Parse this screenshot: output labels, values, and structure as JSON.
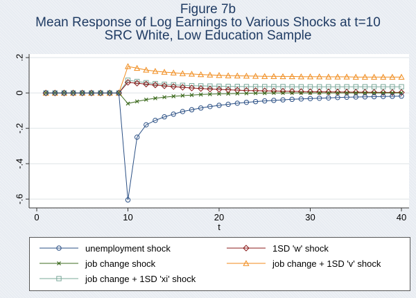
{
  "chart_data": {
    "type": "line",
    "title": "Figure 7b",
    "subtitle": [
      "Mean Response of Log Earnings to Various Shocks at t=10",
      "SRC White, Low Education Sample"
    ],
    "xlabel": "t",
    "ylabel": "",
    "xlim": [
      0,
      40
    ],
    "ylim": [
      -0.65,
      0.22
    ],
    "xticks": [
      0,
      10,
      20,
      30,
      40
    ],
    "xtick_labels": [
      "0",
      "10",
      "20",
      "30",
      "40"
    ],
    "yticks": [
      0.2,
      0,
      -0.2,
      -0.4,
      -0.6
    ],
    "ytick_labels": [
      ".2",
      "0",
      "-.2",
      "-.4",
      "-.6"
    ],
    "grid": true,
    "x": [
      1,
      2,
      3,
      4,
      5,
      6,
      7,
      8,
      9,
      10,
      11,
      12,
      13,
      14,
      15,
      16,
      17,
      18,
      19,
      20,
      21,
      22,
      23,
      24,
      25,
      26,
      27,
      28,
      29,
      30,
      31,
      32,
      33,
      34,
      35,
      36,
      37,
      38,
      39,
      40
    ],
    "series": [
      {
        "name": "unemployment shock",
        "color": "#2a4f84",
        "marker": "circle",
        "values": [
          0,
          0,
          0,
          0,
          0,
          0,
          0,
          0,
          0,
          -0.605,
          -0.25,
          -0.18,
          -0.155,
          -0.135,
          -0.12,
          -0.105,
          -0.095,
          -0.085,
          -0.077,
          -0.07,
          -0.064,
          -0.058,
          -0.053,
          -0.049,
          -0.045,
          -0.042,
          -0.039,
          -0.036,
          -0.034,
          -0.032,
          -0.03,
          -0.028,
          -0.026,
          -0.024,
          -0.023,
          -0.022,
          -0.021,
          -0.02,
          -0.019,
          -0.018
        ]
      },
      {
        "name": "1SD 'w' shock",
        "color": "#8b1a1a",
        "marker": "diamond",
        "values": [
          0,
          0,
          0,
          0,
          0,
          0,
          0,
          0,
          0,
          0.06,
          0.055,
          0.05,
          0.045,
          0.04,
          0.036,
          0.032,
          0.028,
          0.025,
          0.022,
          0.02,
          0.018,
          0.016,
          0.014,
          0.013,
          0.012,
          0.011,
          0.01,
          0.009,
          0.008,
          0.007,
          0.0065,
          0.006,
          0.0055,
          0.005,
          0.0045,
          0.004,
          0.0035,
          0.003,
          0.003,
          0.003
        ]
      },
      {
        "name": "job change shock",
        "color": "#3d6b1f",
        "marker": "x",
        "values": [
          0,
          0,
          0,
          0,
          0,
          0,
          0,
          0,
          0,
          -0.06,
          -0.048,
          -0.038,
          -0.03,
          -0.024,
          -0.019,
          -0.015,
          -0.012,
          -0.009,
          -0.007,
          -0.005,
          -0.004,
          -0.003,
          -0.002,
          -0.001,
          -0.001,
          0,
          0,
          0,
          0,
          0,
          0,
          0,
          0,
          0,
          0,
          0,
          0,
          0,
          0,
          0
        ]
      },
      {
        "name": "job change + 1SD 'v' shock",
        "color": "#f08a1a",
        "marker": "triangle",
        "values": [
          0,
          0,
          0,
          0,
          0,
          0,
          0,
          0,
          0,
          0.15,
          0.14,
          0.13,
          0.123,
          0.118,
          0.114,
          0.11,
          0.107,
          0.104,
          0.102,
          0.1,
          0.098,
          0.097,
          0.096,
          0.095,
          0.094,
          0.094,
          0.093,
          0.093,
          0.092,
          0.092,
          0.092,
          0.091,
          0.091,
          0.091,
          0.09,
          0.09,
          0.09,
          0.09,
          0.09,
          0.09
        ]
      },
      {
        "name": "job change + 1SD 'xi' shock",
        "color": "#7aa89a",
        "marker": "square",
        "values": [
          0,
          0,
          0,
          0,
          0,
          0,
          0,
          0,
          0,
          0.072,
          0.065,
          0.058,
          0.053,
          0.049,
          0.046,
          0.043,
          0.041,
          0.04,
          0.039,
          0.038,
          0.037,
          0.037,
          0.036,
          0.036,
          0.036,
          0.036,
          0.036,
          0.035,
          0.035,
          0.035,
          0.035,
          0.035,
          0.035,
          0.035,
          0.035,
          0.035,
          0.035,
          0.035,
          0.035,
          0.035
        ]
      }
    ]
  }
}
